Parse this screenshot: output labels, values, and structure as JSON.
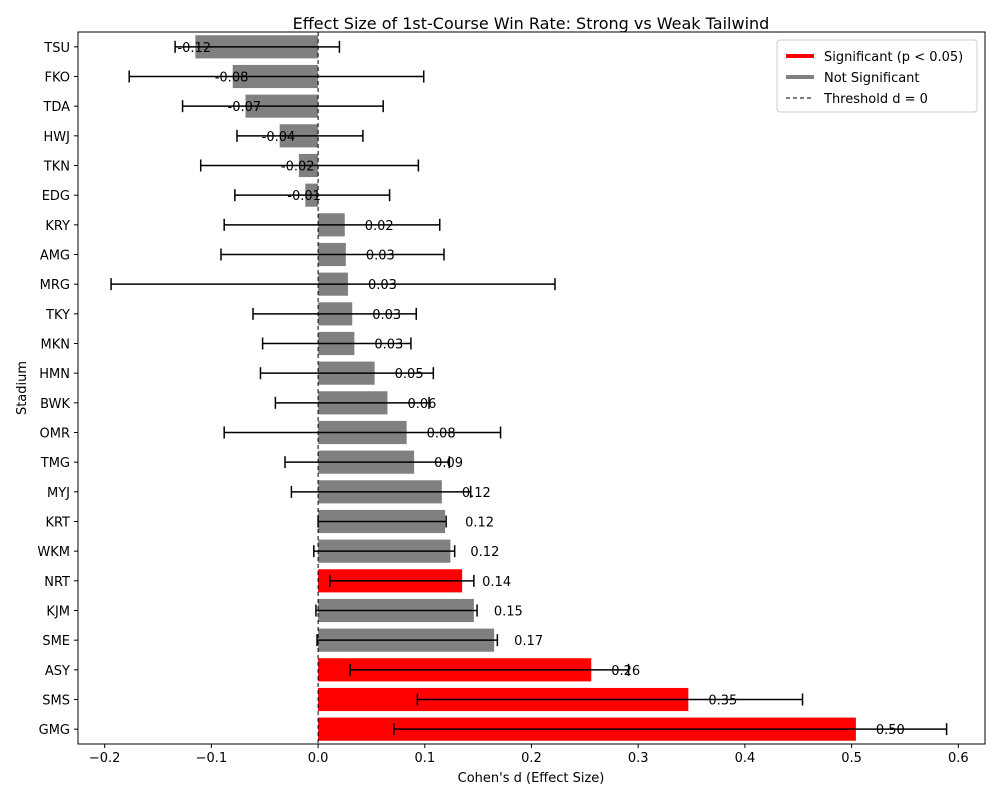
{
  "chart_data": {
    "type": "bar",
    "orientation": "horizontal",
    "title": "Effect Size of 1st-Course Win Rate: Strong vs Weak Tailwind",
    "xlabel": "Cohen's d (Effect Size)",
    "ylabel": "Stadium",
    "xlim": [
      -0.225,
      0.625
    ],
    "xticks": [
      -0.2,
      -0.1,
      0.0,
      0.1,
      0.2,
      0.3,
      0.4,
      0.5,
      0.6
    ],
    "xtick_labels": [
      "−0.2",
      "−0.1",
      "0.0",
      "0.1",
      "0.2",
      "0.3",
      "0.4",
      "0.5",
      "0.6"
    ],
    "grid": false,
    "legend_position": "top-right",
    "threshold": 0,
    "colors": {
      "significant": "#ff0000",
      "not_significant": "#808080",
      "threshold_line": "#000000",
      "error_bar": "#000000"
    },
    "legend": [
      {
        "label": "Significant (p < 0.05)",
        "kind": "line",
        "color": "#ff0000"
      },
      {
        "label": "Not Significant",
        "kind": "line",
        "color": "#808080"
      },
      {
        "label": "Threshold d = 0",
        "kind": "dashed",
        "color": "#000000"
      }
    ],
    "categories": [
      "TSU",
      "FKO",
      "TDA",
      "HWJ",
      "TKN",
      "EDG",
      "KRY",
      "AMG",
      "MRG",
      "TKY",
      "MKN",
      "HMN",
      "BWK",
      "OMR",
      "TMG",
      "MYJ",
      "KRT",
      "WKM",
      "NRT",
      "KJM",
      "SME",
      "ASY",
      "SMS",
      "GMG"
    ],
    "values": [
      -0.115,
      -0.08,
      -0.068,
      -0.036,
      -0.018,
      -0.012,
      0.025,
      0.026,
      0.028,
      0.032,
      0.034,
      0.053,
      0.065,
      0.083,
      0.09,
      0.116,
      0.119,
      0.124,
      0.135,
      0.146,
      0.165,
      0.256,
      0.347,
      0.504
    ],
    "value_labels": [
      "-0.12",
      "-0.08",
      "-0.07",
      "-0.04",
      "-0.02",
      "-0.01",
      "0.02",
      "0.03",
      "0.03",
      "0.03",
      "0.03",
      "0.05",
      "0.06",
      "0.08",
      "0.09",
      "0.12",
      "0.12",
      "0.12",
      "0.14",
      "0.15",
      "0.17",
      "0.26",
      "0.35",
      "0.50"
    ],
    "ci_low": [
      -0.134,
      -0.177,
      -0.127,
      -0.076,
      -0.11,
      -0.078,
      -0.088,
      -0.091,
      -0.194,
      -0.061,
      -0.052,
      -0.054,
      -0.04,
      -0.088,
      -0.031,
      -0.025,
      0.0,
      -0.004,
      0.011,
      -0.002,
      -0.001,
      0.03,
      0.093,
      0.071
    ],
    "ci_high": [
      0.02,
      0.099,
      0.061,
      0.042,
      0.094,
      0.067,
      0.114,
      0.118,
      0.222,
      0.092,
      0.087,
      0.108,
      0.104,
      0.171,
      0.123,
      0.143,
      0.12,
      0.128,
      0.146,
      0.149,
      0.168,
      0.291,
      0.454,
      0.589
    ],
    "significant": [
      false,
      false,
      false,
      false,
      false,
      false,
      false,
      false,
      false,
      false,
      false,
      false,
      false,
      false,
      false,
      false,
      false,
      false,
      true,
      false,
      false,
      true,
      true,
      true
    ]
  }
}
